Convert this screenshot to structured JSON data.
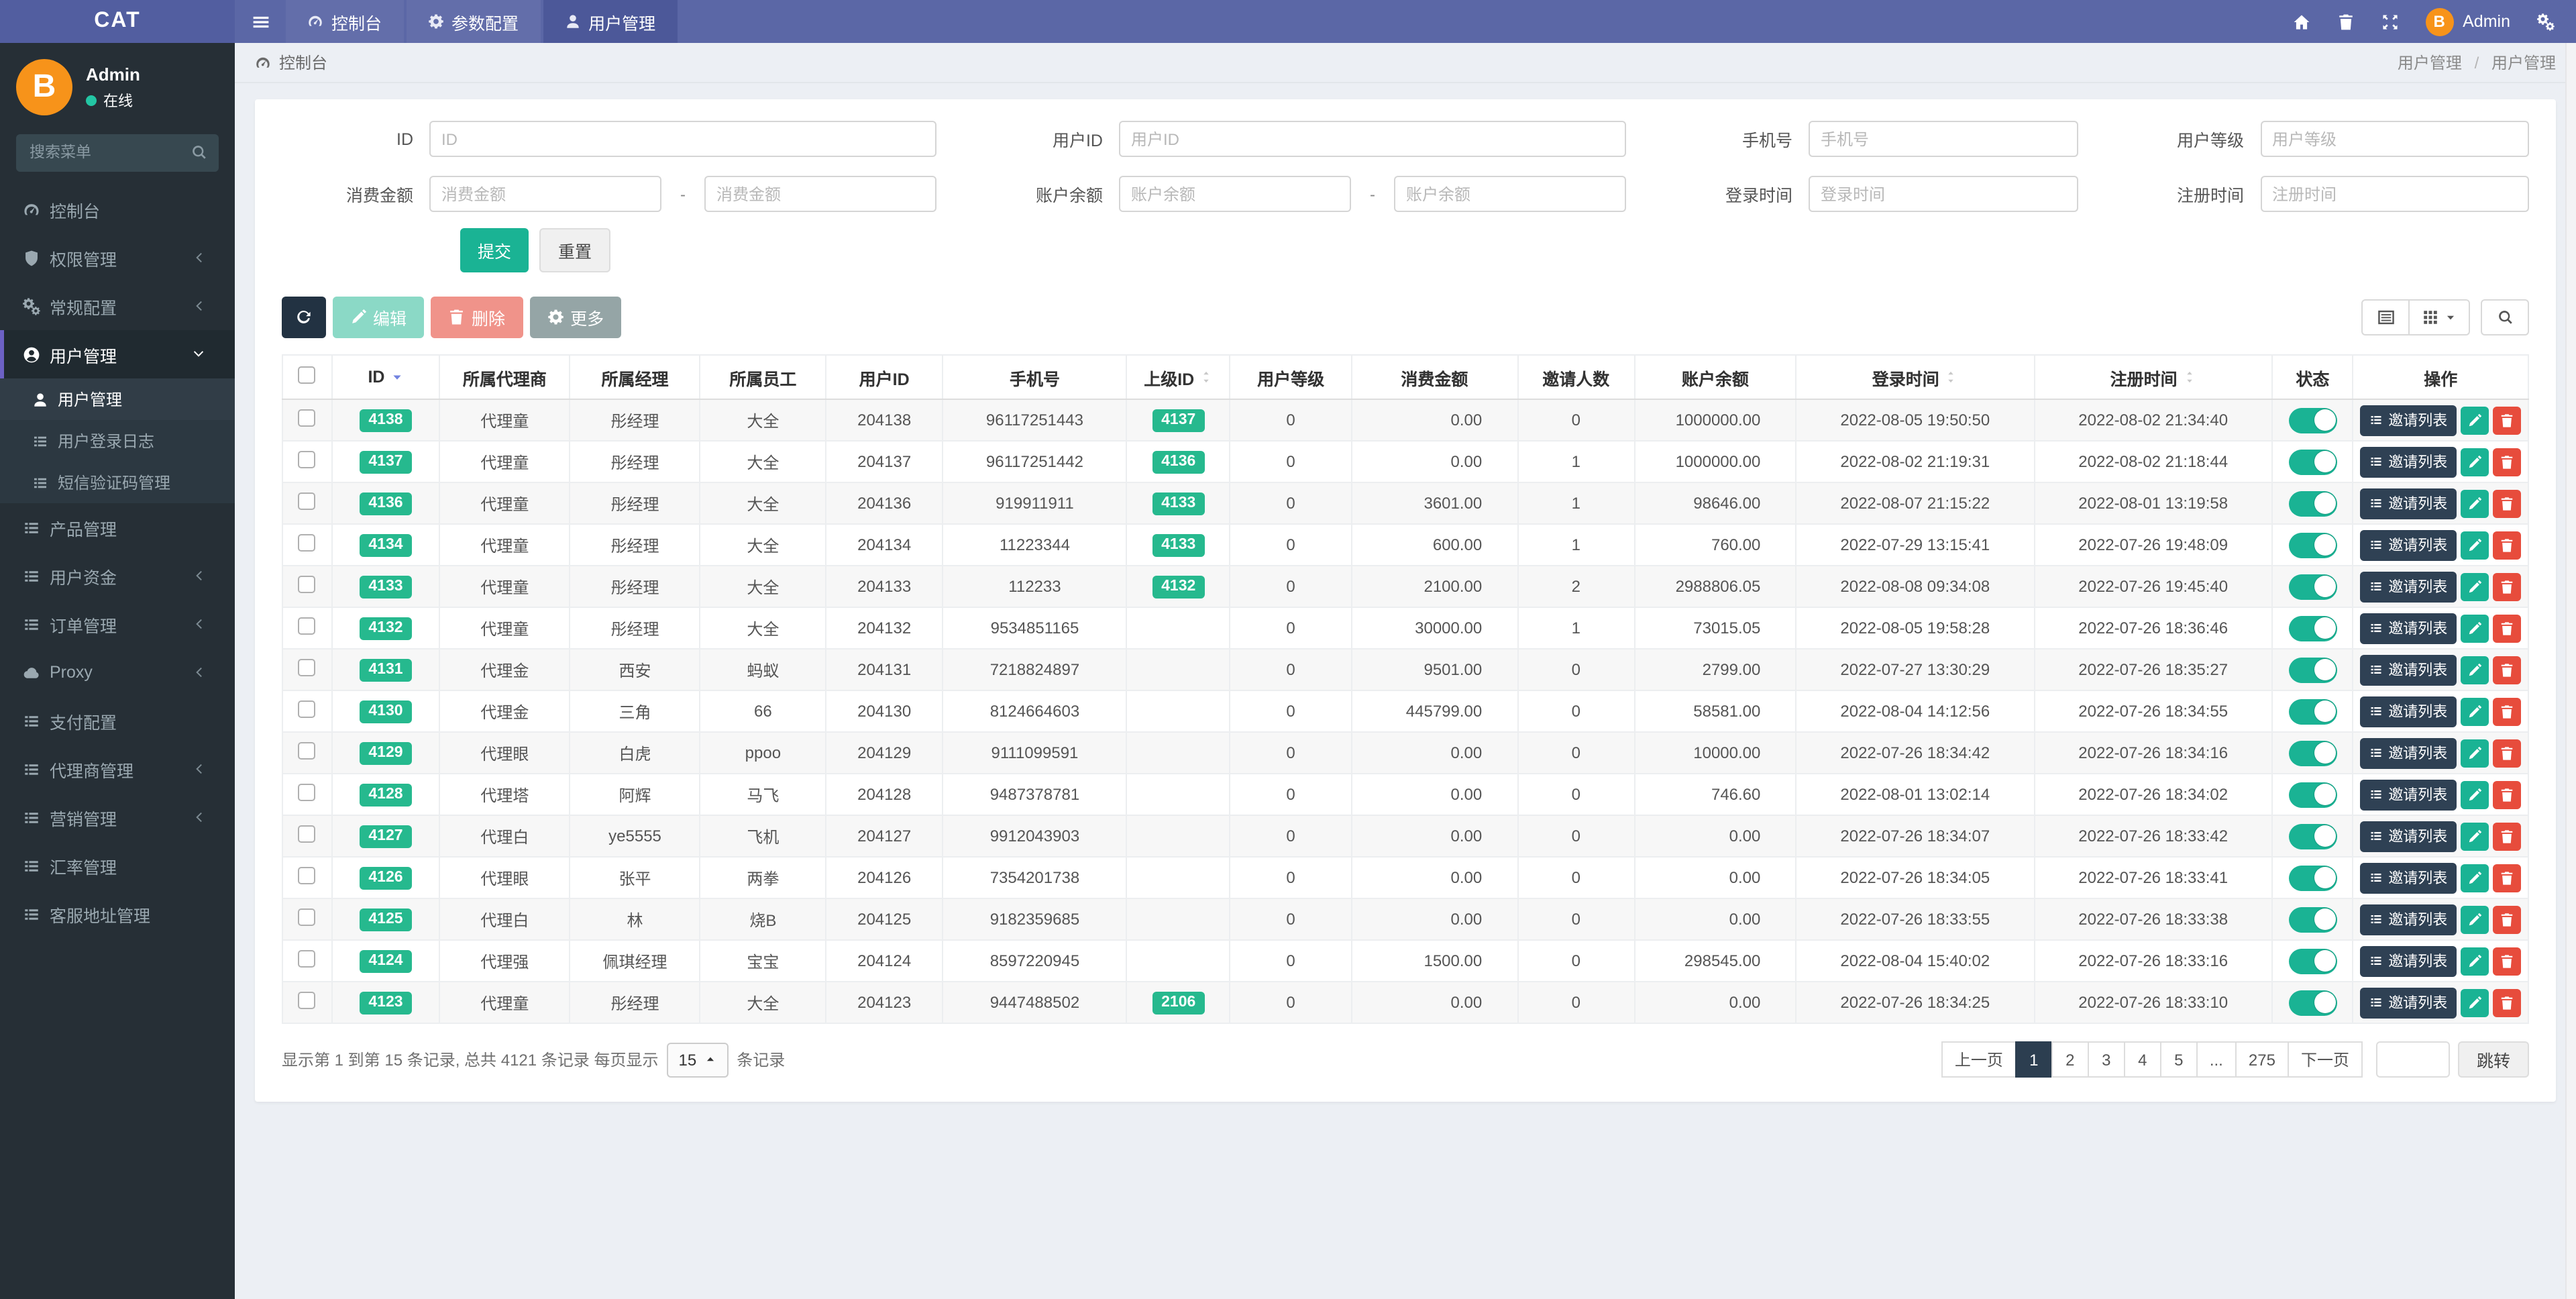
{
  "colors": {
    "navbar_purple": "#5b67a6",
    "sidebar_dark": "#262f36",
    "accent_teal": "#1ab394",
    "badge_green": "#26b98e",
    "danger_red": "#e74c3c",
    "navy_dark": "#2c3e50",
    "avatar_orange": "#f7931a",
    "sort_active_blue": "#7283e0"
  },
  "navbar": {
    "brand": "CAT",
    "items": [
      {
        "label": "控制台",
        "icon": "gauge",
        "active": false
      },
      {
        "label": "参数配置",
        "icon": "gear",
        "active": false
      },
      {
        "label": "用户管理",
        "icon": "person",
        "active": true
      }
    ],
    "right_icons": [
      "home",
      "trash",
      "expand"
    ],
    "user": {
      "name": "Admin",
      "avatar_letter": "B"
    },
    "settings_icon": "gears"
  },
  "sidebar": {
    "user": {
      "name": "Admin",
      "status": "在线",
      "avatar_letter": "B"
    },
    "search_placeholder": "搜索菜单",
    "items": [
      {
        "label": "控制台",
        "icon": "gauge"
      },
      {
        "label": "权限管理",
        "icon": "shield",
        "chevron": "left"
      },
      {
        "label": "常规配置",
        "icon": "gears",
        "chevron": "left"
      },
      {
        "label": "用户管理",
        "icon": "user-circle",
        "chevron": "down",
        "active": true,
        "children": [
          {
            "label": "用户管理",
            "icon": "person",
            "active": true
          },
          {
            "label": "用户登录日志",
            "icon": "list",
            "active": false
          },
          {
            "label": "短信验证码管理",
            "icon": "list",
            "active": false
          }
        ]
      },
      {
        "label": "产品管理",
        "icon": "list"
      },
      {
        "label": "用户资金",
        "icon": "list",
        "chevron": "left"
      },
      {
        "label": "订单管理",
        "icon": "list",
        "chevron": "left"
      },
      {
        "label": "Proxy",
        "icon": "cloud",
        "chevron": "left"
      },
      {
        "label": "支付配置",
        "icon": "list"
      },
      {
        "label": "代理商管理",
        "icon": "list",
        "chevron": "left"
      },
      {
        "label": "营销管理",
        "icon": "list",
        "chevron": "left"
      },
      {
        "label": "汇率管理",
        "icon": "list"
      },
      {
        "label": "客服地址管理",
        "icon": "list"
      }
    ]
  },
  "breadcrumb": {
    "left": "控制台",
    "right": [
      "用户管理",
      "用户管理"
    ],
    "separator": "/"
  },
  "filters": {
    "fields": [
      {
        "label": "ID",
        "placeholder": "ID",
        "type": "single"
      },
      {
        "label": "用户ID",
        "placeholder": "用户ID",
        "type": "single"
      },
      {
        "label": "手机号",
        "placeholder": "手机号",
        "type": "single"
      },
      {
        "label": "用户等级",
        "placeholder": "用户等级",
        "type": "single"
      },
      {
        "label": "消费金额",
        "placeholder": "消费金额",
        "type": "range"
      },
      {
        "label": "账户余额",
        "placeholder": "账户余额",
        "type": "range"
      },
      {
        "label": "登录时间",
        "placeholder": "登录时间",
        "type": "single"
      },
      {
        "label": "注册时间",
        "placeholder": "注册时间",
        "type": "single"
      }
    ]
  },
  "labels": {
    "submit": "提交",
    "reset": "重置",
    "edit": "编辑",
    "delete": "删除",
    "more": "更多",
    "invite_list": "邀请列表",
    "jump": "跳转"
  },
  "table": {
    "columns": [
      {
        "key": "check",
        "label": "",
        "type": "checkbox"
      },
      {
        "key": "id",
        "label": "ID",
        "sort": "desc",
        "type": "badge"
      },
      {
        "key": "agent",
        "label": "所属代理商"
      },
      {
        "key": "manager",
        "label": "所属经理"
      },
      {
        "key": "staff",
        "label": "所属员工"
      },
      {
        "key": "user_id",
        "label": "用户ID"
      },
      {
        "key": "phone",
        "label": "手机号"
      },
      {
        "key": "parent_id",
        "label": "上级ID",
        "sort": "both",
        "type": "badge"
      },
      {
        "key": "level",
        "label": "用户等级"
      },
      {
        "key": "consume",
        "label": "消费金额",
        "align": "right"
      },
      {
        "key": "invites",
        "label": "邀请人数"
      },
      {
        "key": "balance",
        "label": "账户余额",
        "align": "right"
      },
      {
        "key": "login_time",
        "label": "登录时间",
        "sort": "both"
      },
      {
        "key": "register_time",
        "label": "注册时间",
        "sort": "both"
      },
      {
        "key": "status",
        "label": "状态",
        "type": "toggle"
      },
      {
        "key": "actions",
        "label": "操作",
        "type": "actions"
      }
    ],
    "rows": [
      {
        "id": "4138",
        "agent": "代理童",
        "manager": "彤经理",
        "staff": "大全",
        "user_id": "204138",
        "phone": "96117251443",
        "parent_id": "4137",
        "level": "0",
        "consume": "0.00",
        "invites": "0",
        "balance": "1000000.00",
        "login_time": "2022-08-05 19:50:50",
        "register_time": "2022-08-02 21:34:40",
        "status": true
      },
      {
        "id": "4137",
        "agent": "代理童",
        "manager": "彤经理",
        "staff": "大全",
        "user_id": "204137",
        "phone": "96117251442",
        "parent_id": "4136",
        "level": "0",
        "consume": "0.00",
        "invites": "1",
        "balance": "1000000.00",
        "login_time": "2022-08-02 21:19:31",
        "register_time": "2022-08-02 21:18:44",
        "status": true
      },
      {
        "id": "4136",
        "agent": "代理童",
        "manager": "彤经理",
        "staff": "大全",
        "user_id": "204136",
        "phone": "919911911",
        "parent_id": "4133",
        "level": "0",
        "consume": "3601.00",
        "invites": "1",
        "balance": "98646.00",
        "login_time": "2022-08-07 21:15:22",
        "register_time": "2022-08-01 13:19:58",
        "status": true
      },
      {
        "id": "4134",
        "agent": "代理童",
        "manager": "彤经理",
        "staff": "大全",
        "user_id": "204134",
        "phone": "11223344",
        "parent_id": "4133",
        "level": "0",
        "consume": "600.00",
        "invites": "1",
        "balance": "760.00",
        "login_time": "2022-07-29 13:15:41",
        "register_time": "2022-07-26 19:48:09",
        "status": true
      },
      {
        "id": "4133",
        "agent": "代理童",
        "manager": "彤经理",
        "staff": "大全",
        "user_id": "204133",
        "phone": "112233",
        "parent_id": "4132",
        "level": "0",
        "consume": "2100.00",
        "invites": "2",
        "balance": "2988806.05",
        "login_time": "2022-08-08 09:34:08",
        "register_time": "2022-07-26 19:45:40",
        "status": true
      },
      {
        "id": "4132",
        "agent": "代理童",
        "manager": "彤经理",
        "staff": "大全",
        "user_id": "204132",
        "phone": "9534851165",
        "parent_id": "",
        "level": "0",
        "consume": "30000.00",
        "invites": "1",
        "balance": "73015.05",
        "login_time": "2022-08-05 19:58:28",
        "register_time": "2022-07-26 18:36:46",
        "status": true
      },
      {
        "id": "4131",
        "agent": "代理金",
        "manager": "西安",
        "staff": "蚂蚁",
        "user_id": "204131",
        "phone": "7218824897",
        "parent_id": "",
        "level": "0",
        "consume": "9501.00",
        "invites": "0",
        "balance": "2799.00",
        "login_time": "2022-07-27 13:30:29",
        "register_time": "2022-07-26 18:35:27",
        "status": true
      },
      {
        "id": "4130",
        "agent": "代理金",
        "manager": "三角",
        "staff": "66",
        "user_id": "204130",
        "phone": "8124664603",
        "parent_id": "",
        "level": "0",
        "consume": "445799.00",
        "invites": "0",
        "balance": "58581.00",
        "login_time": "2022-08-04 14:12:56",
        "register_time": "2022-07-26 18:34:55",
        "status": true
      },
      {
        "id": "4129",
        "agent": "代理眼",
        "manager": "白虎",
        "staff": "ppoo",
        "user_id": "204129",
        "phone": "9111099591",
        "parent_id": "",
        "level": "0",
        "consume": "0.00",
        "invites": "0",
        "balance": "10000.00",
        "login_time": "2022-07-26 18:34:42",
        "register_time": "2022-07-26 18:34:16",
        "status": true
      },
      {
        "id": "4128",
        "agent": "代理塔",
        "manager": "阿辉",
        "staff": "马飞",
        "user_id": "204128",
        "phone": "9487378781",
        "parent_id": "",
        "level": "0",
        "consume": "0.00",
        "invites": "0",
        "balance": "746.60",
        "login_time": "2022-08-01 13:02:14",
        "register_time": "2022-07-26 18:34:02",
        "status": true
      },
      {
        "id": "4127",
        "agent": "代理白",
        "manager": "ye5555",
        "staff": "飞机",
        "user_id": "204127",
        "phone": "9912043903",
        "parent_id": "",
        "level": "0",
        "consume": "0.00",
        "invites": "0",
        "balance": "0.00",
        "login_time": "2022-07-26 18:34:07",
        "register_time": "2022-07-26 18:33:42",
        "status": true
      },
      {
        "id": "4126",
        "agent": "代理眼",
        "manager": "张平",
        "staff": "两拳",
        "user_id": "204126",
        "phone": "7354201738",
        "parent_id": "",
        "level": "0",
        "consume": "0.00",
        "invites": "0",
        "balance": "0.00",
        "login_time": "2022-07-26 18:34:05",
        "register_time": "2022-07-26 18:33:41",
        "status": true
      },
      {
        "id": "4125",
        "agent": "代理白",
        "manager": "林",
        "staff": "烧B",
        "user_id": "204125",
        "phone": "9182359685",
        "parent_id": "",
        "level": "0",
        "consume": "0.00",
        "invites": "0",
        "balance": "0.00",
        "login_time": "2022-07-26 18:33:55",
        "register_time": "2022-07-26 18:33:38",
        "status": true
      },
      {
        "id": "4124",
        "agent": "代理强",
        "manager": "佩琪经理",
        "staff": "宝宝",
        "user_id": "204124",
        "phone": "8597220945",
        "parent_id": "",
        "level": "0",
        "consume": "1500.00",
        "invites": "0",
        "balance": "298545.00",
        "login_time": "2022-08-04 15:40:02",
        "register_time": "2022-07-26 18:33:16",
        "status": true
      },
      {
        "id": "4123",
        "agent": "代理童",
        "manager": "彤经理",
        "staff": "大全",
        "user_id": "204123",
        "phone": "9447488502",
        "parent_id": "2106",
        "level": "0",
        "consume": "0.00",
        "invites": "0",
        "balance": "0.00",
        "login_time": "2022-07-26 18:34:25",
        "register_time": "2022-07-26 18:33:10",
        "status": true
      }
    ]
  },
  "pagination": {
    "info_before": "显示第 1 到第 15 条记录, 总共 4121 条记录 每页显示",
    "page_size": "15",
    "info_after": "条记录",
    "prev": "上一页",
    "next": "下一页",
    "pages": [
      "1",
      "2",
      "3",
      "4",
      "5",
      "...",
      "275"
    ],
    "active_page": "1",
    "jump": "跳转"
  }
}
